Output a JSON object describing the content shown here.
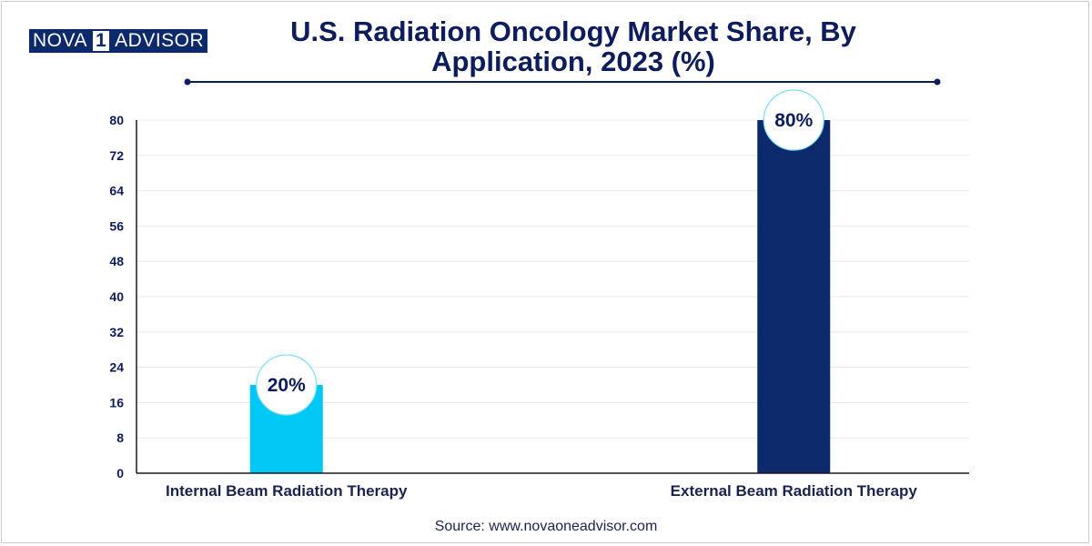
{
  "brand": {
    "left": "NOVA",
    "mid": "1",
    "right": "ADVISOR"
  },
  "source": "Source: www.novaoneadvisor.com",
  "colors": {
    "navy": "#0c2a6b",
    "cyan": "#00c8f5",
    "grid": "#e6e8ee",
    "text": "#0c1c5c"
  },
  "chart_data": {
    "type": "bar",
    "title": "U.S. Radiation Oncology Market Share, By Application, 2023 (%)",
    "categories": [
      "Internal Beam Radiation Therapy",
      "External Beam Radiation Therapy"
    ],
    "values": [
      20,
      80
    ],
    "data_labels": [
      "20%",
      "80%"
    ],
    "bar_colors": [
      "#00c8f5",
      "#0c2a6b"
    ],
    "xlabel": "",
    "ylabel": "",
    "ylim": [
      0,
      80
    ],
    "yticks": [
      0,
      8,
      16,
      24,
      32,
      40,
      48,
      56,
      64,
      72,
      80
    ],
    "grid": true,
    "legend": "none"
  }
}
